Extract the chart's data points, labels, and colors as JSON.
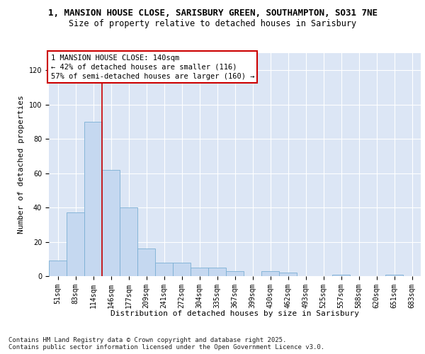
{
  "title_line1": "1, MANSION HOUSE CLOSE, SARISBURY GREEN, SOUTHAMPTON, SO31 7NE",
  "title_line2": "Size of property relative to detached houses in Sarisbury",
  "xlabel": "Distribution of detached houses by size in Sarisbury",
  "ylabel": "Number of detached properties",
  "categories": [
    "51sqm",
    "83sqm",
    "114sqm",
    "146sqm",
    "177sqm",
    "209sqm",
    "241sqm",
    "272sqm",
    "304sqm",
    "335sqm",
    "367sqm",
    "399sqm",
    "430sqm",
    "462sqm",
    "493sqm",
    "525sqm",
    "557sqm",
    "588sqm",
    "620sqm",
    "651sqm",
    "683sqm"
  ],
  "values": [
    9,
    37,
    90,
    62,
    40,
    16,
    8,
    8,
    5,
    5,
    3,
    0,
    3,
    2,
    0,
    0,
    1,
    0,
    0,
    1,
    0
  ],
  "bar_color": "#c5d8f0",
  "bar_edge_color": "#7bafd4",
  "vline_pos": 2.5,
  "vline_color": "#cc0000",
  "ylim": [
    0,
    130
  ],
  "yticks": [
    0,
    20,
    40,
    60,
    80,
    100,
    120
  ],
  "annotation_box_text": "1 MANSION HOUSE CLOSE: 140sqm\n← 42% of detached houses are smaller (116)\n57% of semi-detached houses are larger (160) →",
  "background_color": "#dce6f5",
  "footer_text": "Contains HM Land Registry data © Crown copyright and database right 2025.\nContains public sector information licensed under the Open Government Licence v3.0.",
  "title_fontsize": 9,
  "subtitle_fontsize": 8.5,
  "axis_label_fontsize": 8,
  "tick_fontsize": 7,
  "annotation_fontsize": 7.5,
  "footer_fontsize": 6.5
}
